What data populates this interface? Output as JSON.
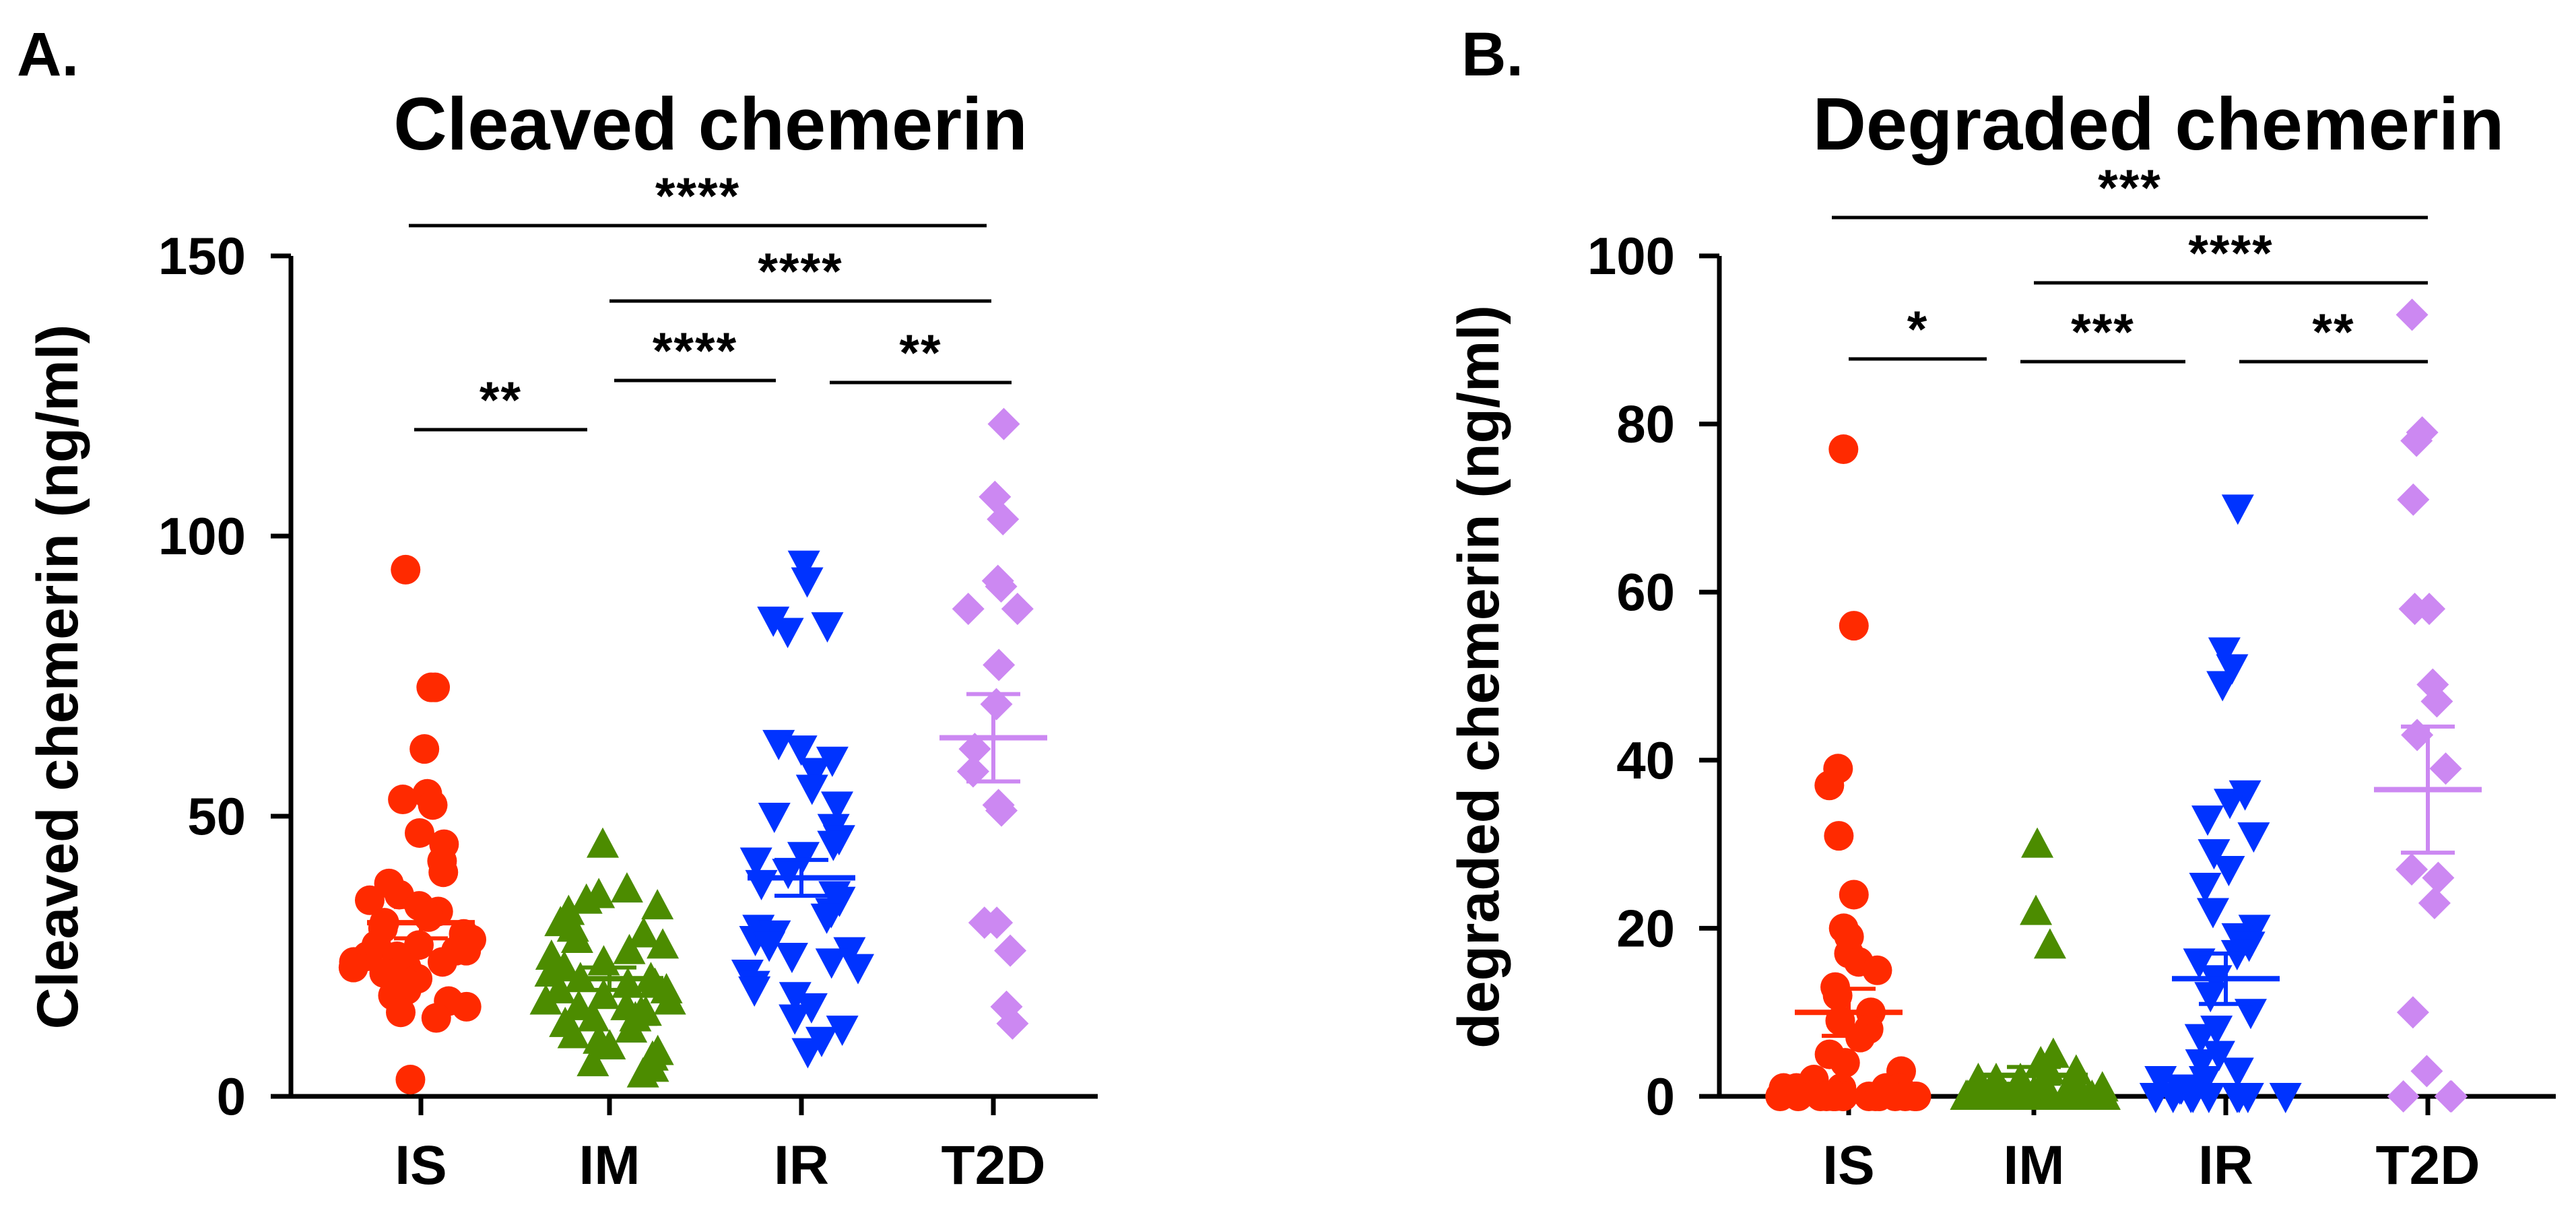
{
  "chart_data": [
    {
      "type": "scatter",
      "panel_label": "A.",
      "title": "Cleaved chemerin",
      "ylabel": "Cleaved chemerin (ng/ml)",
      "xlabel": "",
      "ylim": [
        0,
        150
      ],
      "yticks": [
        0,
        50,
        100,
        150
      ],
      "categories": [
        "IS",
        "IM",
        "IR",
        "T2D"
      ],
      "colors": [
        "#FF2A00",
        "#4C8C00",
        "#0033FF",
        "#CC88F2"
      ],
      "markers": [
        "circle",
        "triangle-up",
        "triangle-down",
        "diamond"
      ],
      "series": [
        {
          "name": "IS",
          "mean": 31,
          "sem": 2.8,
          "values": [
            94,
            73,
            73,
            62,
            54,
            53,
            52,
            47,
            45,
            42,
            40,
            38,
            36,
            35,
            34,
            33,
            32,
            31,
            30,
            29,
            28,
            27,
            27,
            26,
            26,
            25,
            25,
            24,
            24,
            23,
            23,
            22,
            22,
            21,
            20,
            19,
            18,
            17,
            16,
            15,
            14,
            3
          ]
        },
        {
          "name": "IM",
          "mean": 21,
          "sem": 2,
          "values": [
            45,
            37,
            36,
            35,
            34,
            33,
            31,
            30,
            29,
            28,
            27,
            26,
            25,
            24,
            23,
            22,
            21,
            21,
            20,
            20,
            19,
            19,
            18,
            17,
            17,
            16,
            16,
            15,
            15,
            14,
            14,
            13,
            12,
            11,
            10,
            9,
            8,
            7,
            6,
            5,
            4
          ]
        },
        {
          "name": "IR",
          "mean": 39,
          "sem": 3.2,
          "values": [
            95,
            92,
            85,
            84,
            83,
            63,
            62,
            60,
            58,
            55,
            52,
            50,
            48,
            46,
            45,
            43,
            42,
            40,
            38,
            36,
            35,
            33,
            32,
            30,
            29,
            28,
            27,
            26,
            25,
            24,
            23,
            22,
            20,
            19,
            18,
            16,
            14,
            12,
            10,
            8
          ]
        },
        {
          "name": "T2D",
          "mean": 64,
          "sem": 7.8,
          "values": [
            120,
            107,
            103,
            92,
            91,
            87,
            87,
            77,
            70,
            62,
            58,
            52,
            51,
            31,
            31,
            26,
            16,
            13
          ]
        }
      ],
      "significance": [
        {
          "from": "IS",
          "to": "IM",
          "label": "**"
        },
        {
          "from": "IM",
          "to": "IR",
          "label": "****"
        },
        {
          "from": "IR",
          "to": "T2D",
          "label": "**"
        },
        {
          "from": "IM",
          "to": "T2D",
          "label": "****"
        },
        {
          "from": "IS",
          "to": "T2D",
          "label": "****"
        }
      ]
    },
    {
      "type": "scatter",
      "panel_label": "B.",
      "title": "Degraded chemerin",
      "ylabel": "degraded chemerin (ng/ml)",
      "xlabel": "",
      "ylim": [
        0,
        100
      ],
      "yticks": [
        0,
        20,
        40,
        60,
        80,
        100
      ],
      "categories": [
        "IS",
        "IM",
        "IR",
        "T2D"
      ],
      "colors": [
        "#FF2A00",
        "#4C8C00",
        "#0033FF",
        "#CC88F2"
      ],
      "markers": [
        "circle",
        "triangle-up",
        "triangle-down",
        "diamond"
      ],
      "series": [
        {
          "name": "IS",
          "mean": 10,
          "sem": 2.8,
          "values": [
            77,
            56,
            39,
            37,
            31,
            24,
            20,
            19,
            17,
            16,
            15,
            13,
            12,
            10,
            9,
            8,
            7,
            5,
            4,
            3,
            2,
            1,
            1,
            1,
            1,
            1,
            1,
            0,
            0,
            0,
            0,
            0,
            0,
            0,
            0,
            0,
            0,
            0,
            0,
            0,
            0,
            0
          ]
        },
        {
          "name": "IM",
          "mean": 2.5,
          "sem": 1,
          "values": [
            30,
            22,
            18,
            5,
            4,
            3,
            3,
            2,
            2,
            2,
            1,
            1,
            1,
            1,
            1,
            1,
            0,
            0,
            0,
            0,
            0,
            0,
            0,
            0,
            0,
            0,
            0,
            0,
            0,
            0,
            0,
            0,
            0,
            0,
            0,
            0,
            0,
            0,
            0,
            0,
            0
          ]
        },
        {
          "name": "IR",
          "mean": 14,
          "sem": 3,
          "values": [
            70,
            53,
            51,
            49,
            36,
            35,
            33,
            31,
            29,
            27,
            25,
            22,
            20,
            19,
            18,
            17,
            16,
            14,
            12,
            10,
            8,
            7,
            5,
            4,
            3,
            2,
            2,
            1,
            1,
            1,
            1,
            0,
            0,
            0,
            0,
            0,
            0,
            0,
            0,
            0
          ]
        },
        {
          "name": "T2D",
          "mean": 36.5,
          "sem": 7.5,
          "values": [
            93,
            79,
            78,
            71,
            58,
            58,
            49,
            47,
            43,
            39,
            27,
            26,
            23,
            10,
            3,
            0,
            0,
            0
          ]
        }
      ],
      "significance": [
        {
          "from": "IS",
          "to": "IM",
          "label": "*"
        },
        {
          "from": "IM",
          "to": "IR",
          "label": "***"
        },
        {
          "from": "IR",
          "to": "T2D",
          "label": "**"
        },
        {
          "from": "IM",
          "to": "T2D",
          "label": "****"
        },
        {
          "from": "IS",
          "to": "T2D",
          "label": "***"
        }
      ]
    }
  ]
}
